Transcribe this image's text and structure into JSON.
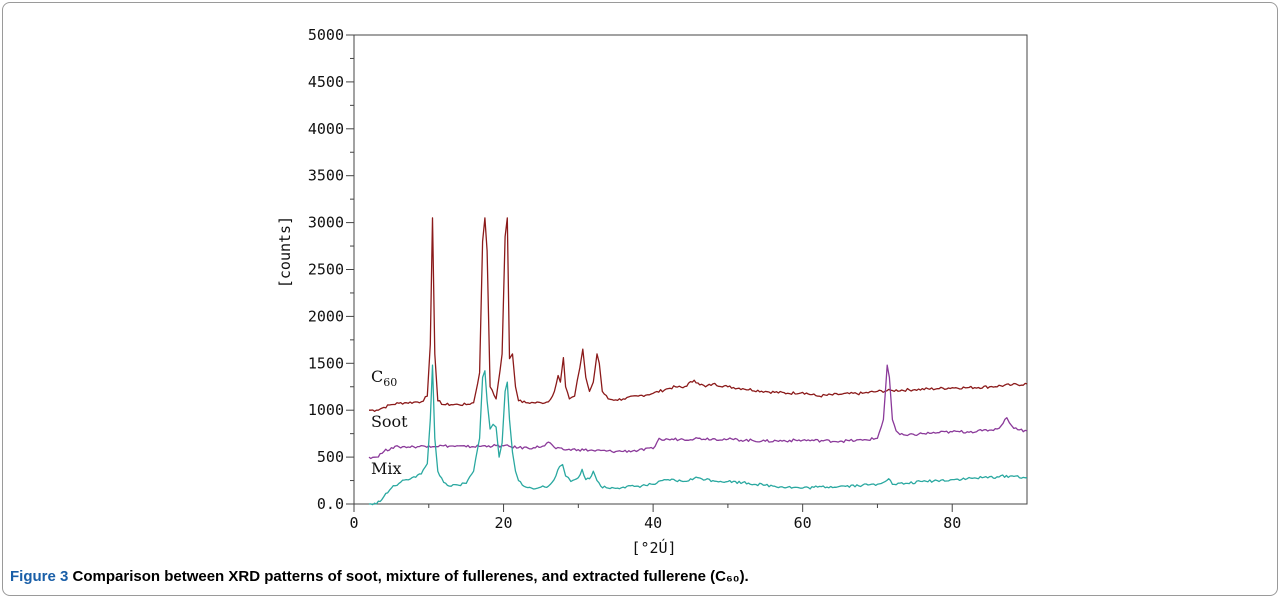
{
  "caption": {
    "figure": "Figure 3",
    "text": "Comparison between XRD patterns of soot, mixture of fullerenes, and extracted fullerene (C₆₀)."
  },
  "chart_data": {
    "type": "line",
    "title": "",
    "xlabel": "[°2Ú]",
    "ylabel": "[counts]",
    "xlim": [
      0,
      90
    ],
    "ylim": [
      0,
      5000
    ],
    "xticks": [
      "0",
      "20",
      "40",
      "60",
      "80"
    ],
    "yticks": [
      "0.0",
      "500",
      "1000",
      "1500",
      "2000",
      "2500",
      "3000",
      "3500",
      "4000",
      "4500",
      "5000"
    ],
    "grid": false,
    "series": [
      {
        "name": "C60",
        "color": "#8b1a1a",
        "x": [
          2,
          3,
          4,
          5,
          6,
          7,
          8,
          9,
          9.8,
          10.2,
          10.5,
          10.8,
          11.2,
          12,
          13,
          14,
          15,
          16,
          16.8,
          17.2,
          17.5,
          17.8,
          18.2,
          19,
          19.8,
          20.2,
          20.5,
          20.8,
          21.2,
          21.6,
          22,
          23,
          24,
          25,
          26,
          26.8,
          27.3,
          27.6,
          28,
          28.3,
          28.8,
          29.5,
          30.2,
          30.6,
          31,
          31.5,
          32,
          32.5,
          32.8,
          33.2,
          34,
          35,
          36,
          38,
          40,
          42,
          43,
          44,
          45.5,
          46,
          47,
          48,
          50,
          52,
          55,
          58,
          60,
          62,
          65,
          68,
          70,
          72,
          75,
          78,
          80,
          82,
          85,
          88,
          90
        ],
        "y": [
          1000,
          1000,
          1030,
          1060,
          1075,
          1080,
          1085,
          1090,
          1150,
          1700,
          3050,
          1600,
          1100,
          1060,
          1060,
          1060,
          1060,
          1080,
          1400,
          2800,
          3050,
          2700,
          1250,
          1120,
          1600,
          2850,
          3050,
          1550,
          1600,
          1250,
          1100,
          1080,
          1080,
          1080,
          1090,
          1200,
          1370,
          1300,
          1560,
          1250,
          1120,
          1150,
          1450,
          1650,
          1350,
          1200,
          1300,
          1600,
          1500,
          1200,
          1120,
          1110,
          1120,
          1150,
          1180,
          1230,
          1250,
          1240,
          1320,
          1290,
          1250,
          1280,
          1250,
          1230,
          1200,
          1180,
          1190,
          1150,
          1170,
          1180,
          1200,
          1210,
          1220,
          1230,
          1240,
          1240,
          1250,
          1270,
          1280
        ]
      },
      {
        "name": "Soot",
        "color": "#8b3a9a",
        "x": [
          2,
          3,
          4,
          5,
          6,
          8,
          10,
          12,
          15,
          18,
          20,
          22,
          24,
          25.5,
          26,
          26.5,
          27,
          28,
          30,
          32,
          35,
          38,
          40,
          40.8,
          41.2,
          42,
          44,
          46,
          50,
          55,
          60,
          65,
          68,
          70,
          70.8,
          71.3,
          71.6,
          72,
          72.5,
          73,
          74,
          76,
          78,
          80,
          82,
          84,
          86,
          86.8,
          87.3,
          88,
          89,
          90
        ],
        "y": [
          500,
          500,
          560,
          600,
          610,
          610,
          620,
          620,
          610,
          620,
          620,
          600,
          600,
          620,
          660,
          630,
          590,
          580,
          580,
          570,
          560,
          570,
          590,
          700,
          680,
          690,
          690,
          700,
          690,
          670,
          680,
          670,
          680,
          700,
          900,
          1480,
          1350,
          900,
          780,
          740,
          730,
          750,
          760,
          770,
          770,
          780,
          800,
          860,
          920,
          830,
          790,
          780
        ]
      },
      {
        "name": "Mix",
        "color": "#2aa8a0",
        "x": [
          2,
          3,
          4,
          5,
          6,
          7,
          8,
          9,
          9.8,
          10.2,
          10.5,
          10.8,
          11.2,
          12,
          13,
          14,
          15,
          16,
          16.8,
          17.2,
          17.5,
          17.8,
          18.2,
          18.6,
          19,
          19.4,
          19.8,
          20.2,
          20.5,
          20.8,
          21.2,
          21.6,
          22,
          23,
          24,
          25,
          26,
          27,
          27.5,
          27.9,
          28.3,
          29,
          30,
          30.5,
          31,
          31.5,
          32,
          32.5,
          33,
          34,
          36,
          38,
          40,
          42,
          44,
          46,
          48,
          50,
          52,
          55,
          58,
          60,
          62,
          65,
          68,
          70,
          71.5,
          72,
          74,
          76,
          78,
          80,
          82,
          84,
          86,
          88,
          90
        ],
        "y": [
          0,
          0,
          80,
          170,
          220,
          260,
          290,
          320,
          430,
          900,
          1480,
          700,
          350,
          230,
          190,
          200,
          220,
          350,
          700,
          1350,
          1420,
          1100,
          800,
          850,
          820,
          500,
          650,
          1200,
          1300,
          900,
          550,
          350,
          250,
          180,
          160,
          180,
          190,
          300,
          400,
          420,
          300,
          240,
          280,
          370,
          260,
          270,
          350,
          250,
          190,
          170,
          180,
          190,
          210,
          260,
          240,
          280,
          250,
          240,
          230,
          200,
          180,
          170,
          180,
          190,
          200,
          210,
          270,
          210,
          220,
          240,
          250,
          260,
          270,
          280,
          290,
          300,
          280
        ]
      }
    ],
    "series_labels": [
      {
        "series": 0,
        "text": "C",
        "sub": "60",
        "at": [
          2,
          1300
        ]
      },
      {
        "series": 1,
        "text": "Soot",
        "at": [
          2,
          820
        ]
      },
      {
        "series": 2,
        "text": "Mix",
        "at": [
          2,
          320
        ]
      }
    ]
  }
}
